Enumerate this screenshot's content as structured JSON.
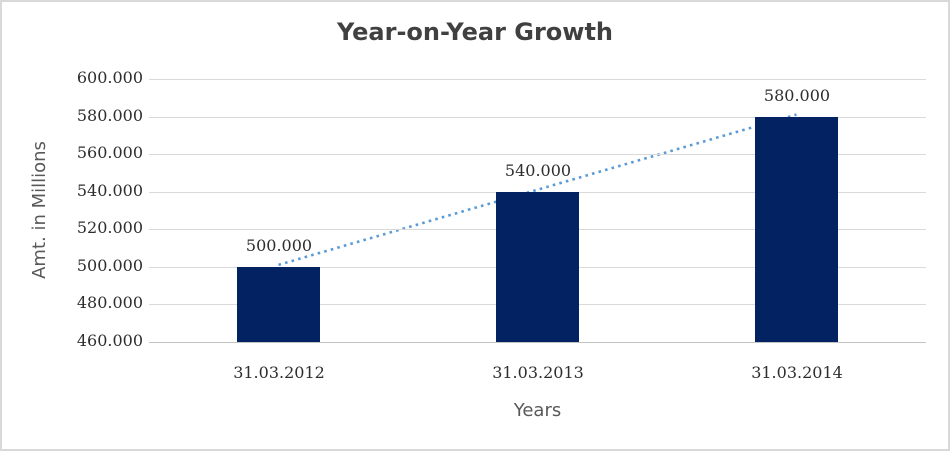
{
  "chart_data": {
    "type": "bar",
    "title": "Year-on-Year Growth",
    "xlabel": "Years",
    "ylabel": "Amt. in Millions",
    "categories": [
      "31.03.2012",
      "31.03.2013",
      "31.03.2014"
    ],
    "values": [
      500000,
      540000,
      580000
    ],
    "data_labels": [
      "500.000",
      "540.000",
      "580.000"
    ],
    "ylim": [
      460000,
      600000
    ],
    "ytick_step": 20000,
    "ytick_labels": [
      "460.000",
      "480.000",
      "500.000",
      "520.000",
      "540.000",
      "560.000",
      "580.000",
      "600.000"
    ],
    "grid": true,
    "legend": false,
    "bar_color": "#022261",
    "gridline_color": "#d9d9d9",
    "axis_line_color": "#c3c3c3",
    "title_color": "#404040",
    "tick_label_color": "#2e2e2e",
    "axis_title_color": "#595959",
    "trendline": {
      "type": "linear",
      "style": "dotted",
      "color": "#5B9BD5"
    }
  }
}
